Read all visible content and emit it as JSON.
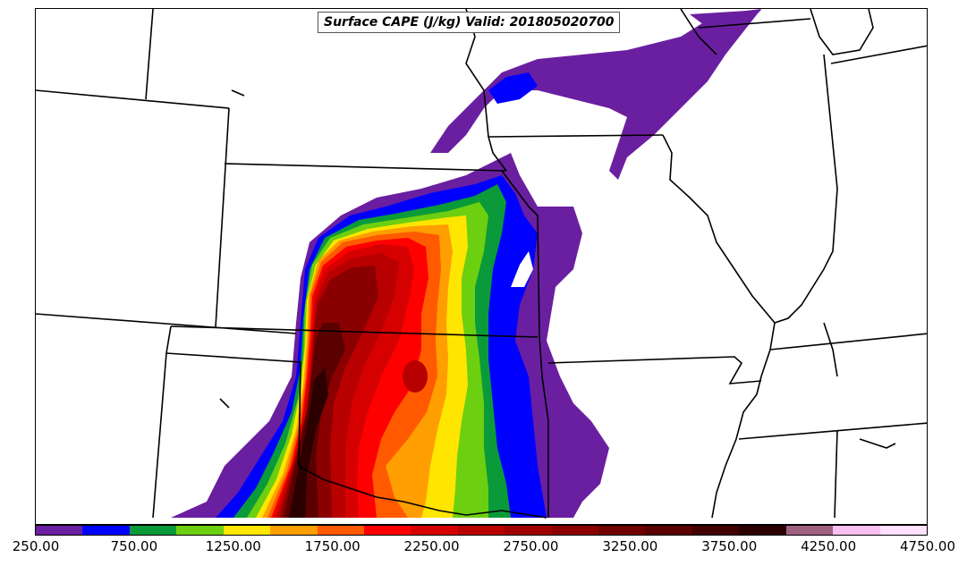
{
  "map": {
    "title": "Surface CAPE (J/kg) Valid: 201805020700",
    "field": "Surface CAPE",
    "units": "J/kg",
    "valid_time": "201805020700"
  },
  "colorbar": {
    "min": 250,
    "max": 4750,
    "interval": 250,
    "tick_labels": [
      "250.00",
      "750.00",
      "1250.00",
      "1750.00",
      "2250.00",
      "2750.00",
      "3250.00",
      "3750.00",
      "4250.00",
      "4750.00"
    ],
    "colors": [
      "#6a1fa0",
      "#0000ff",
      "#0a9a3a",
      "#6ccf10",
      "#ffe600",
      "#ff9e00",
      "#ff5a00",
      "#ff0000",
      "#d60000",
      "#b80000",
      "#a00000",
      "#8a0000",
      "#700000",
      "#5a0000",
      "#420000",
      "#2a0000",
      "#a06080",
      "#f7c0f0",
      "#ffe0ff"
    ]
  }
}
